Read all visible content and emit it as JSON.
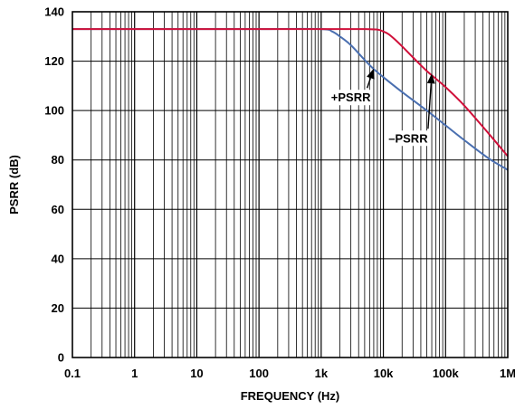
{
  "chart_data": {
    "type": "line",
    "title": "",
    "xlabel": "FREQUENCY (Hz)",
    "ylabel": "PSRR (dB)",
    "xscale": "log",
    "xlim": [
      0.1,
      1000000
    ],
    "ylim": [
      0,
      140
    ],
    "grid": true,
    "x_tick_values": [
      0.1,
      1,
      10,
      100,
      1000,
      10000,
      100000,
      1000000
    ],
    "x_tick_labels": [
      "0.1",
      "1",
      "10",
      "100",
      "1k",
      "10k",
      "100k",
      "1M"
    ],
    "y_tick_values": [
      0,
      20,
      40,
      60,
      80,
      100,
      120,
      140
    ],
    "y_tick_labels": [
      "0",
      "20",
      "40",
      "60",
      "80",
      "100",
      "120",
      "140"
    ],
    "series": [
      {
        "name": "+PSRR",
        "color": "#4a6fb0",
        "x": [
          0.1,
          1,
          10,
          100,
          1000,
          1500,
          2000,
          3000,
          5000,
          7000,
          10000,
          20000,
          50000,
          100000,
          200000,
          500000,
          1000000
        ],
        "y": [
          133,
          133,
          133,
          133,
          133,
          132,
          130,
          126.5,
          120.5,
          116.8,
          113.5,
          107.5,
          100,
          94,
          88,
          80.5,
          76
        ]
      },
      {
        "name": "–PSRR",
        "color": "#d0103a",
        "x": [
          0.1,
          1,
          10,
          100,
          1000,
          5000,
          8000,
          10000,
          12000,
          15000,
          20000,
          30000,
          50000,
          100000,
          200000,
          500000,
          1000000
        ],
        "y": [
          133,
          133,
          133,
          133,
          133,
          133,
          132.8,
          132,
          131,
          129,
          126,
          121.5,
          116,
          109.5,
          102,
          90.5,
          81.5
        ]
      }
    ],
    "annotations": [
      {
        "text": "+PSRR",
        "series": "+PSRR",
        "label_at": [
          3000,
          104
        ],
        "arrow_to": [
          7000,
          117
        ]
      },
      {
        "text": "–PSRR",
        "series": "–PSRR",
        "label_at": [
          25000,
          87.5
        ],
        "arrow_to": [
          60000,
          115
        ]
      }
    ]
  }
}
